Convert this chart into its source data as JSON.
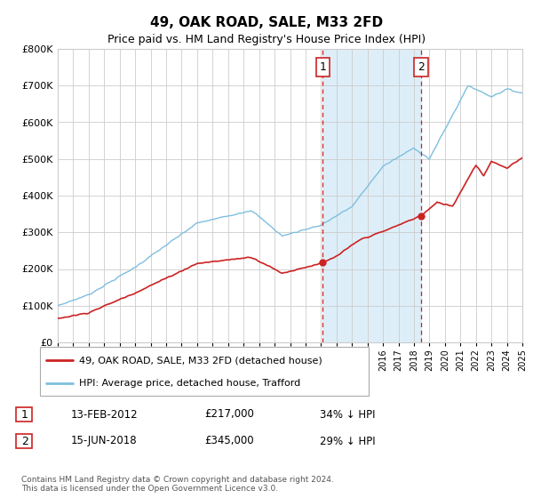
{
  "title": "49, OAK ROAD, SALE, M33 2FD",
  "subtitle": "Price paid vs. HM Land Registry's House Price Index (HPI)",
  "hpi_color": "#7fbfdf",
  "price_color": "#cc2222",
  "sale1_year": 2012.12,
  "sale1_price": 217000,
  "sale2_year": 2018.46,
  "sale2_price": 345000,
  "ylim": [
    0,
    800000
  ],
  "ylabel_ticks": [
    0,
    100000,
    200000,
    300000,
    400000,
    500000,
    600000,
    700000,
    800000
  ],
  "background_color": "#ddeef8",
  "footer": "Contains HM Land Registry data © Crown copyright and database right 2024.\nThis data is licensed under the Open Government Licence v3.0.",
  "legend_entry1": "49, OAK ROAD, SALE, M33 2FD (detached house)",
  "legend_entry2": "HPI: Average price, detached house, Trafford",
  "table_row1_date": "13-FEB-2012",
  "table_row1_price": "£217,000",
  "table_row1_hpi": "34% ↓ HPI",
  "table_row2_date": "15-JUN-2018",
  "table_row2_price": "£345,000",
  "table_row2_hpi": "29% ↓ HPI"
}
